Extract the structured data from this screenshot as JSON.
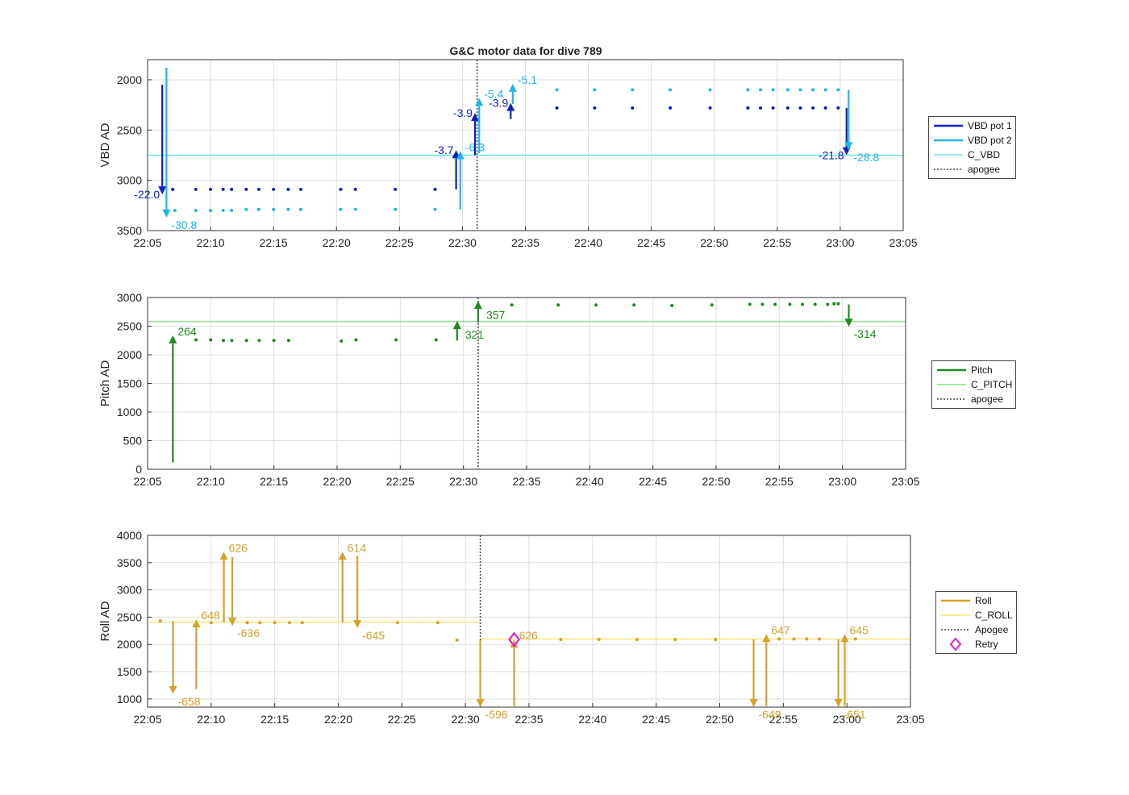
{
  "title": "G&C motor data for dive 789",
  "colors": {
    "vbd1": "#0c20c0",
    "vbd2": "#1fb6e8",
    "c_vbd": "#5fe0e6",
    "pitch": "#1f8a1f",
    "c_pitch": "#66dd66",
    "roll": "#d4a22a",
    "c_roll": "#f4e264",
    "apogee": "#444444",
    "retry": "#e020d0",
    "grid": "#dedede"
  },
  "chart_data": [
    {
      "type": "scatter",
      "name": "vbd",
      "ylabel": "VBD AD",
      "xlim": [
        "22:05",
        "23:05"
      ],
      "ylim": [
        3500,
        1800
      ],
      "yreversed": true,
      "yticks": [
        2000,
        2500,
        3000,
        3500
      ],
      "xticks": [
        "22:05",
        "22:10",
        "22:15",
        "22:20",
        "22:25",
        "22:30",
        "22:35",
        "22:40",
        "22:45",
        "22:50",
        "22:55",
        "23:00",
        "23:05"
      ],
      "grid": true,
      "legend": "right",
      "legend_entries": [
        "VBD pot 1",
        "VBD pot 2",
        "C_VBD",
        "apogee"
      ],
      "series": [
        {
          "name": "VBD pot 1",
          "color_key": "vbd1",
          "x": [
            "22:07:00",
            "22:08:50",
            "22:10:00",
            "22:11:00",
            "22:11:40",
            "22:12:50",
            "22:13:50",
            "22:15:00",
            "22:16:10",
            "22:17:10",
            "22:20:20",
            "22:21:30",
            "22:24:40",
            "22:27:50",
            "22:37:30",
            "22:40:30",
            "22:43:30",
            "22:46:30",
            "22:49:40",
            "22:52:40",
            "22:53:40",
            "22:54:40",
            "22:55:50",
            "22:56:50",
            "22:57:50",
            "22:58:50",
            "22:59:50"
          ],
          "y": [
            3090,
            3090,
            3090,
            3090,
            3090,
            3090,
            3090,
            3090,
            3090,
            3090,
            3090,
            3090,
            3090,
            3090,
            2280,
            2280,
            2280,
            2280,
            2280,
            2280,
            2280,
            2280,
            2280,
            2280,
            2280,
            2280,
            2280
          ]
        },
        {
          "name": "VBD pot 2",
          "color_key": "vbd2",
          "x": [
            "22:07:10",
            "22:08:50",
            "22:10:00",
            "22:11:00",
            "22:11:40",
            "22:12:50",
            "22:13:50",
            "22:15:00",
            "22:16:10",
            "22:17:10",
            "22:20:20",
            "22:21:30",
            "22:24:40",
            "22:27:50",
            "22:37:30",
            "22:40:30",
            "22:43:30",
            "22:46:30",
            "22:49:40",
            "22:52:40",
            "22:53:40",
            "22:54:40",
            "22:55:50",
            "22:56:50",
            "22:57:50",
            "22:58:50",
            "22:59:50"
          ],
          "y": [
            3300,
            3300,
            3300,
            3300,
            3300,
            3290,
            3290,
            3290,
            3290,
            3290,
            3290,
            3290,
            3290,
            3290,
            2100,
            2100,
            2100,
            2100,
            2100,
            2100,
            2100,
            2100,
            2100,
            2100,
            2100,
            2100,
            2100
          ]
        }
      ],
      "ref_lines": [
        {
          "name": "C_VBD",
          "color_key": "c_vbd",
          "y": 2750,
          "from": "22:05",
          "to": "23:05"
        }
      ],
      "apogee": "22:31:10",
      "arrows": [
        {
          "color_key": "vbd1",
          "x": "22:06:10",
          "y0": 2050,
          "y1": 3140,
          "label": "-22.0",
          "label_side": "left"
        },
        {
          "color_key": "vbd2",
          "x": "22:06:30",
          "y0": 1880,
          "y1": 3370,
          "label": "-30.8",
          "label_side": "right"
        },
        {
          "color_key": "vbd1",
          "x": "22:29:30",
          "y0": 3090,
          "y1": 2700,
          "label": "-3.7",
          "label_side": "left"
        },
        {
          "color_key": "vbd2",
          "x": "22:29:50",
          "y0": 3290,
          "y1": 2710,
          "label": "-6.3",
          "label_side": "right"
        },
        {
          "color_key": "vbd1",
          "x": "22:31:00",
          "y0": 2750,
          "y1": 2330,
          "label": "-3.9",
          "label_side": "left"
        },
        {
          "color_key": "vbd2",
          "x": "22:31:20",
          "y0": 2730,
          "y1": 2180,
          "label": "-5.4",
          "label_side": "right"
        },
        {
          "color_key": "vbd1",
          "x": "22:33:50",
          "y0": 2390,
          "y1": 2230,
          "label": "-3.9",
          "label_side": "left"
        },
        {
          "color_key": "vbd2",
          "x": "22:34:00",
          "y0": 2240,
          "y1": 2040,
          "label": "-5.1",
          "label_side": "right"
        },
        {
          "color_key": "vbd1",
          "x": "23:00:30",
          "y0": 2280,
          "y1": 2750,
          "label": "-21.8",
          "label_side": "left"
        },
        {
          "color_key": "vbd2",
          "x": "23:00:40",
          "y0": 2100,
          "y1": 2700,
          "label": "-28.8",
          "label_side": "right"
        }
      ]
    },
    {
      "type": "scatter",
      "name": "pitch",
      "ylabel": "Pitch AD",
      "xlim": [
        "22:05",
        "23:05"
      ],
      "ylim": [
        0,
        3000
      ],
      "yticks": [
        0,
        500,
        1000,
        1500,
        2000,
        2500,
        3000
      ],
      "xticks": [
        "22:05",
        "22:10",
        "22:15",
        "22:20",
        "22:25",
        "22:30",
        "22:35",
        "22:40",
        "22:45",
        "22:50",
        "22:55",
        "23:00",
        "23:05"
      ],
      "grid": true,
      "legend": "right",
      "legend_entries": [
        "Pitch",
        "C_PITCH",
        "apogee"
      ],
      "series": [
        {
          "name": "Pitch",
          "color_key": "pitch",
          "x": [
            "22:08:50",
            "22:10:00",
            "22:11:00",
            "22:11:40",
            "22:12:50",
            "22:13:50",
            "22:15:00",
            "22:16:10",
            "22:20:20",
            "22:21:30",
            "22:24:40",
            "22:27:50",
            "22:33:50",
            "22:37:30",
            "22:40:30",
            "22:43:30",
            "22:46:30",
            "22:49:40",
            "22:52:40",
            "22:53:40",
            "22:54:40",
            "22:55:50",
            "22:56:50",
            "22:57:50",
            "22:58:50",
            "22:59:20",
            "22:59:40"
          ],
          "y": [
            2260,
            2260,
            2250,
            2250,
            2250,
            2250,
            2250,
            2250,
            2240,
            2260,
            2260,
            2260,
            2870,
            2870,
            2870,
            2870,
            2860,
            2870,
            2880,
            2880,
            2880,
            2880,
            2880,
            2880,
            2880,
            2890,
            2890
          ]
        }
      ],
      "ref_lines": [
        {
          "name": "C_PITCH",
          "color_key": "c_pitch",
          "y": 2580,
          "from": "22:05",
          "to": "23:05"
        }
      ],
      "apogee": "22:31:10",
      "arrows": [
        {
          "color_key": "pitch",
          "x": "22:07:00",
          "y0": 120,
          "y1": 2340,
          "label": "264",
          "label_side": "right"
        },
        {
          "color_key": "pitch",
          "x": "22:29:30",
          "y0": 2250,
          "y1": 2590,
          "label": "321",
          "label_side": "right-below"
        },
        {
          "color_key": "pitch",
          "x": "22:31:10",
          "y0": 2560,
          "y1": 2940,
          "label": "357",
          "label_side": "right-below"
        },
        {
          "color_key": "pitch",
          "x": "23:00:30",
          "y0": 2880,
          "y1": 2490,
          "label": "-314",
          "label_side": "right"
        }
      ]
    },
    {
      "type": "scatter",
      "name": "roll",
      "ylabel": "Roll AD",
      "xlim": [
        "22:05",
        "23:05"
      ],
      "ylim": [
        850,
        4000
      ],
      "yticks": [
        1000,
        1500,
        2000,
        2500,
        3000,
        3500,
        4000
      ],
      "xticks": [
        "22:05",
        "22:10",
        "22:15",
        "22:20",
        "22:25",
        "22:30",
        "22:35",
        "22:40",
        "22:45",
        "22:50",
        "22:55",
        "23:00",
        "23:05"
      ],
      "grid": true,
      "legend": "right",
      "legend_entries": [
        "Roll",
        "C_ROLL",
        "Apogee",
        "Retry"
      ],
      "series": [
        {
          "name": "Roll",
          "color_key": "roll",
          "x": [
            "22:06:00",
            "22:10:00",
            "22:12:50",
            "22:13:50",
            "22:15:00",
            "22:16:10",
            "22:17:10",
            "22:24:40",
            "22:27:50",
            "22:29:20",
            "22:37:30",
            "22:40:30",
            "22:43:30",
            "22:46:30",
            "22:49:40",
            "22:54:40",
            "22:55:50",
            "22:56:50",
            "22:57:50",
            "23:00:40"
          ],
          "y": [
            2430,
            2400,
            2400,
            2400,
            2400,
            2400,
            2400,
            2400,
            2400,
            2080,
            2090,
            2090,
            2090,
            2090,
            2090,
            2100,
            2100,
            2100,
            2100,
            2100
          ]
        }
      ],
      "ref_lines": [
        {
          "name": "C_ROLL",
          "color_key": "c_roll",
          "y": 2410,
          "from": "22:05",
          "to": "22:31:10"
        },
        {
          "name": "C_ROLL",
          "color_key": "c_roll",
          "y": 2100,
          "from": "22:31:10",
          "to": "23:05"
        }
      ],
      "apogee": "22:31:10",
      "retry": {
        "x": "22:33:50",
        "y": 2090
      },
      "arrows": [
        {
          "color_key": "roll",
          "x": "22:07:00",
          "y0": 2430,
          "y1": 1090,
          "label": "-658",
          "label_side": "right"
        },
        {
          "color_key": "roll",
          "x": "22:08:50",
          "y0": 1180,
          "y1": 2460,
          "label": "648",
          "label_side": "right"
        },
        {
          "color_key": "roll",
          "x": "22:11:00",
          "y0": 2400,
          "y1": 3700,
          "label": "626",
          "label_side": "right"
        },
        {
          "color_key": "roll",
          "x": "22:11:40",
          "y0": 3600,
          "y1": 2340,
          "label": "-636",
          "label_side": "right"
        },
        {
          "color_key": "roll",
          "x": "22:20:20",
          "y0": 2400,
          "y1": 3700,
          "label": "614",
          "label_side": "right"
        },
        {
          "color_key": "roll",
          "x": "22:21:30",
          "y0": 3630,
          "y1": 2300,
          "label": "-645",
          "label_side": "right"
        },
        {
          "color_key": "roll",
          "x": "22:31:10",
          "y0": 2080,
          "y1": 850,
          "label": "-596",
          "label_side": "right"
        },
        {
          "color_key": "roll",
          "x": "22:33:50",
          "y0": 870,
          "y1": 2090,
          "label": "626",
          "label_side": "right"
        },
        {
          "color_key": "roll",
          "x": "22:52:40",
          "y0": 2090,
          "y1": 850,
          "label": "-649",
          "label_side": "right"
        },
        {
          "color_key": "roll",
          "x": "22:53:40",
          "y0": 870,
          "y1": 2190,
          "label": "647",
          "label_side": "right"
        },
        {
          "color_key": "roll",
          "x": "22:59:20",
          "y0": 2090,
          "y1": 850,
          "label": "-651",
          "label_side": "right"
        },
        {
          "color_key": "roll",
          "x": "22:59:50",
          "y0": 870,
          "y1": 2190,
          "label": "645",
          "label_side": "right"
        }
      ]
    }
  ]
}
